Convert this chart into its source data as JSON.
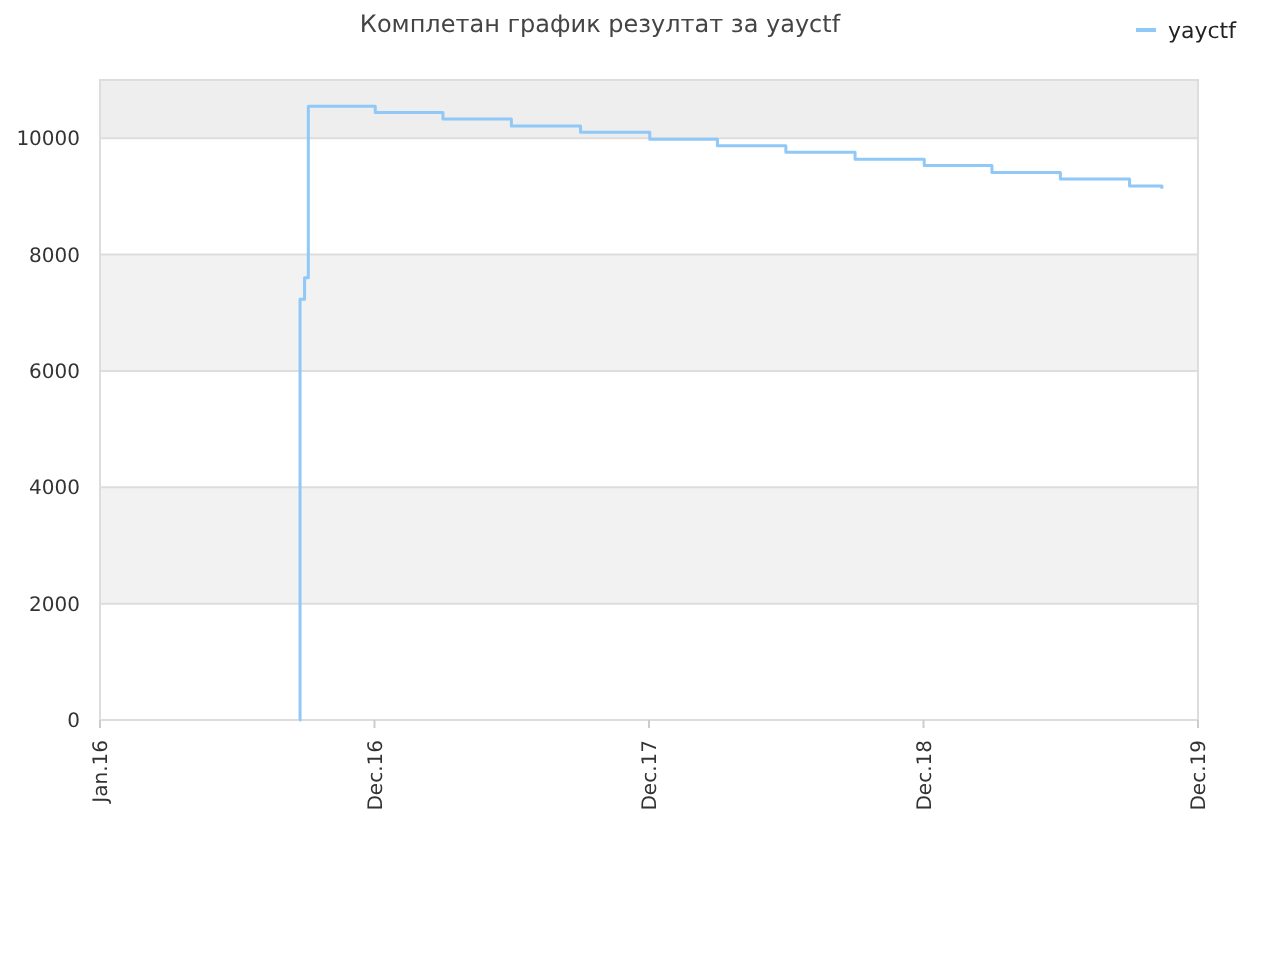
{
  "chart_data": {
    "type": "step",
    "title": "Комплетан график резултат за yayctf",
    "x": [
      "2016-09-22",
      "2016-09-23",
      "2016-09-29",
      "2016-10-04",
      "2017-01-01",
      "2017-04-01",
      "2017-07-01",
      "2017-10-01",
      "2018-01-01",
      "2018-04-01",
      "2018-07-01",
      "2018-10-01",
      "2019-01-01",
      "2019-04-01",
      "2019-07-01",
      "2019-10-01",
      "2019-11-13"
    ],
    "series": [
      {
        "name": "yayctf",
        "color": "#90c8f8",
        "values": [
          0,
          7230,
          7600,
          10550,
          10440,
          10330,
          10210,
          10100,
          9980,
          9870,
          9760,
          9640,
          9530,
          9410,
          9300,
          9180,
          9130
        ]
      }
    ],
    "xlim": [
      "2016-01-01",
      "2019-12-31"
    ],
    "xticks": [
      {
        "value": "2016-01-01",
        "label": "Jan.16"
      },
      {
        "value": "2016-12-31",
        "label": "Dec.16"
      },
      {
        "value": "2017-12-31",
        "label": "Dec.17"
      },
      {
        "value": "2018-12-31",
        "label": "Dec.18"
      },
      {
        "value": "2019-12-31",
        "label": "Dec.19"
      }
    ],
    "ylim": [
      0,
      11000
    ],
    "yticks": [
      0,
      2000,
      4000,
      6000,
      8000,
      10000
    ],
    "grid": true,
    "legend": "top right",
    "marker": "none",
    "line_style": "solid"
  }
}
